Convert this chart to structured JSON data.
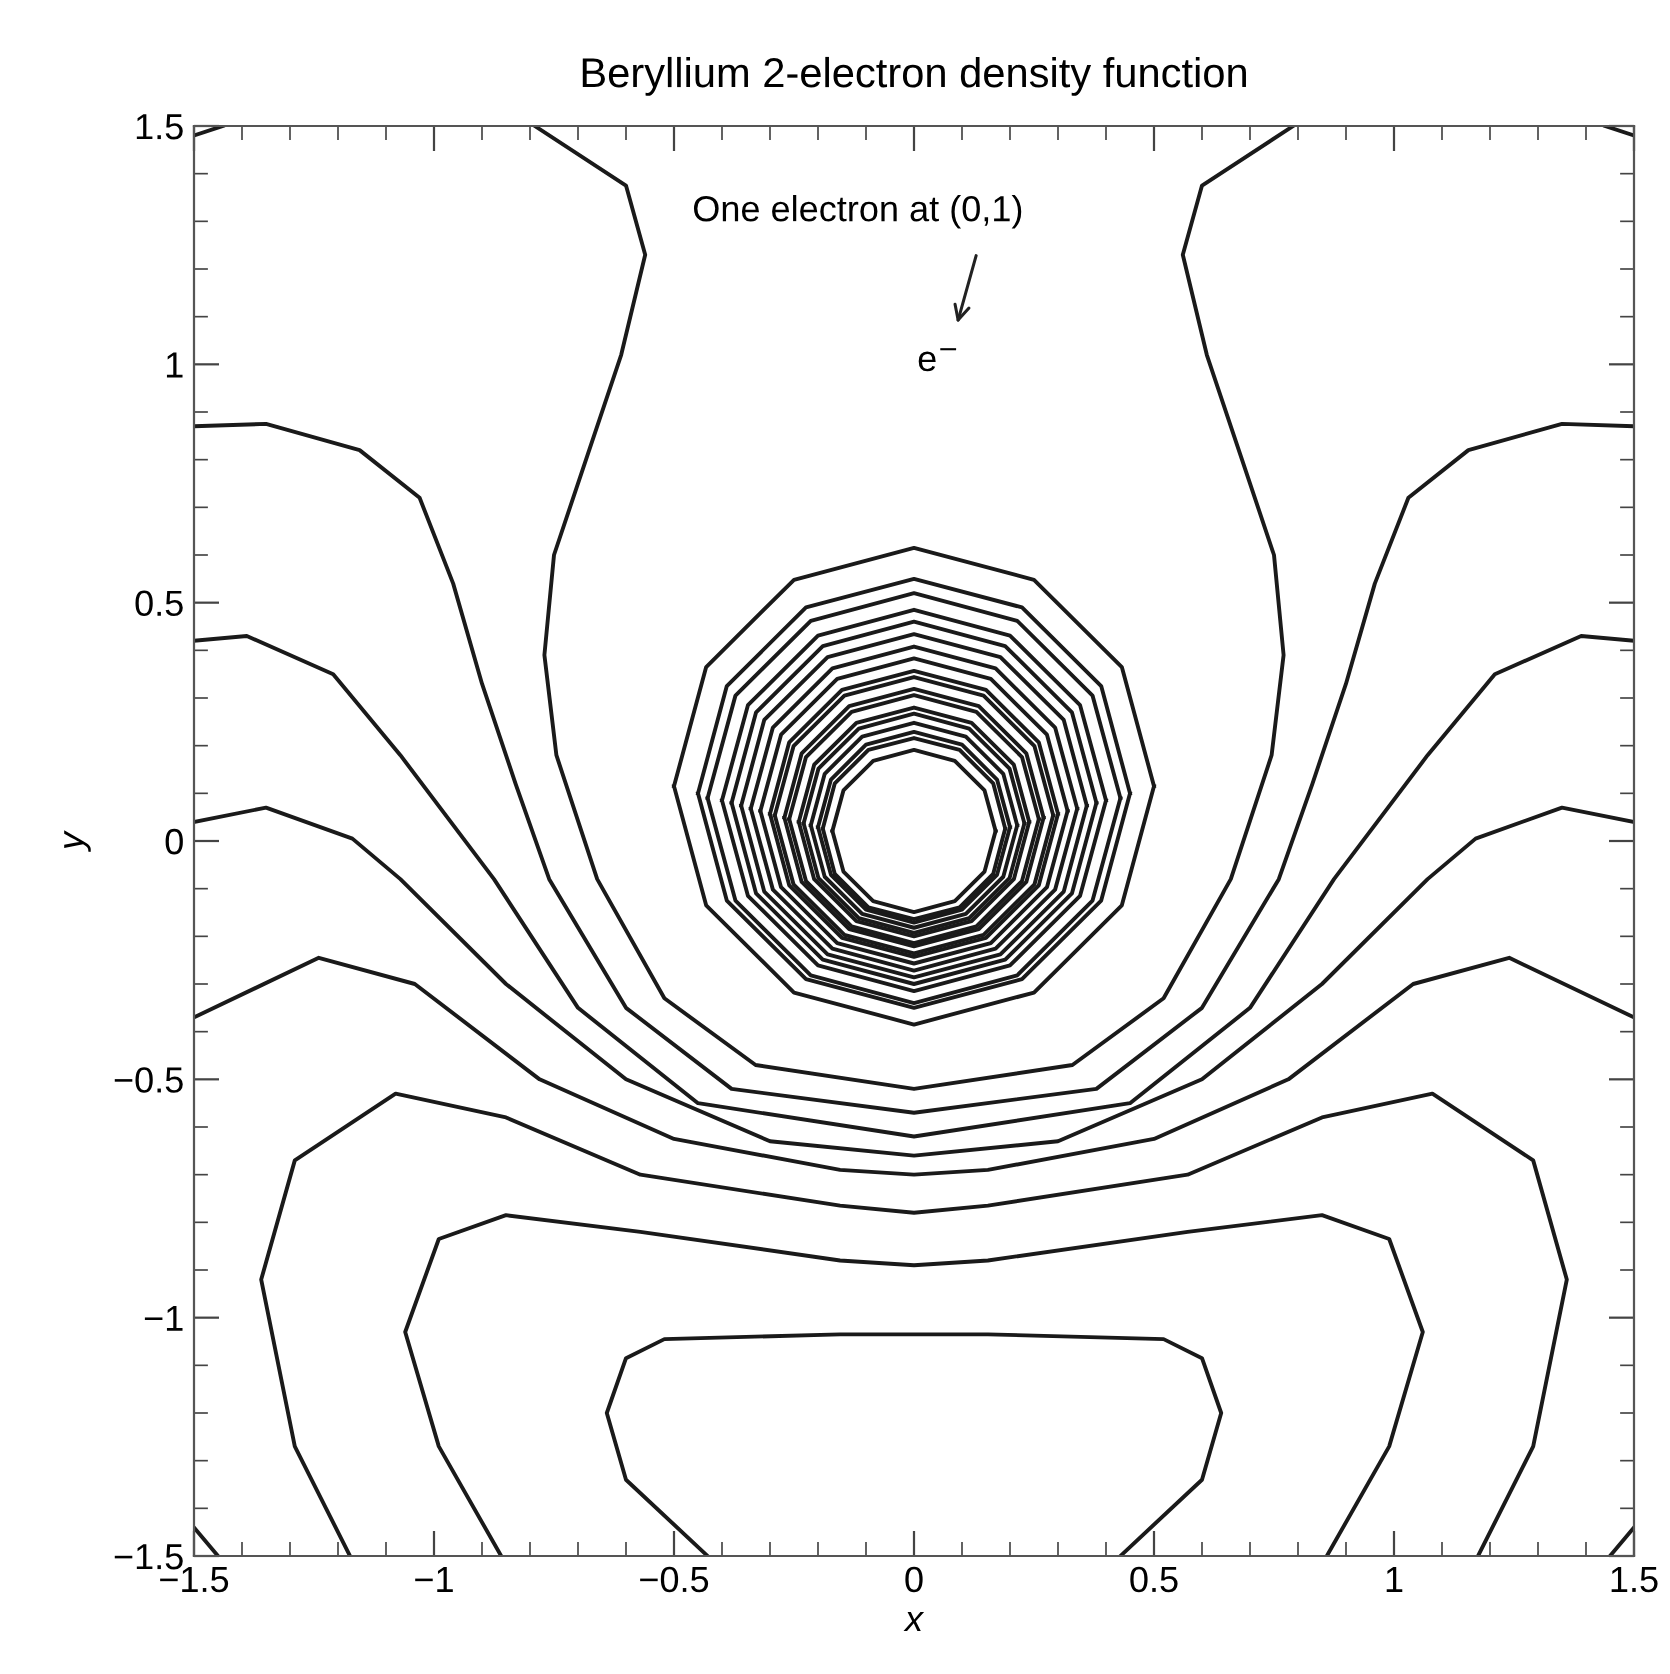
{
  "chart_data": {
    "type": "line",
    "title": "Beryllium 2-electron density function",
    "xlabel": "x",
    "ylabel": "y",
    "line_style": "solid",
    "xlim": [
      -1.5,
      1.5
    ],
    "ylim": [
      -1.5,
      1.5
    ],
    "xticks": [
      {
        "value": -1.5,
        "label": "−1.5"
      },
      {
        "value": -1,
        "label": "−1"
      },
      {
        "value": -0.5,
        "label": "−0.5"
      },
      0,
      0.5,
      1,
      1.5
    ],
    "yticks": [
      {
        "value": -1.5,
        "label": "−1.5"
      },
      {
        "value": -1,
        "label": "−1"
      },
      {
        "value": -0.5,
        "label": "−0.5"
      },
      0,
      0.5,
      1,
      1.5
    ],
    "annotations": [
      "One electron at (0,1)",
      "e$^{−}$"
    ],
    "series": [
      {
        "color": "#1a1a1a",
        "x": [
          -0.79,
          -0.6,
          -0.56,
          -0.61,
          -0.68,
          -0.75,
          -0.77,
          -0.745,
          -0.66,
          -0.52,
          -0.33,
          0,
          0.33,
          0.52,
          0.66,
          0.745,
          0.77,
          0.75,
          0.68,
          0.61,
          0.56,
          0.6,
          0.79
        ],
        "values": [
          1.5,
          1.375,
          1.23,
          1.02,
          0.81,
          0.6,
          0.39,
          0.18,
          -0.08,
          -0.33,
          -0.47,
          -0.52,
          -0.47,
          -0.33,
          -0.08,
          0.18,
          0.39,
          0.6,
          0.81,
          1.02,
          1.23,
          1.375,
          1.5
        ]
      },
      {
        "color": "#1a1a1a",
        "x": [
          -1.5,
          -1.35,
          -1.155,
          -1.03,
          -0.96,
          -0.9,
          -0.83,
          -0.76,
          -0.6,
          -0.38,
          0,
          0.38,
          0.6,
          0.76,
          0.83,
          0.9,
          0.96,
          1.03,
          1.155,
          1.35,
          1.5
        ],
        "values": [
          0.87,
          0.875,
          0.82,
          0.72,
          0.54,
          0.33,
          0.12,
          -0.08,
          -0.35,
          -0.52,
          -0.57,
          -0.52,
          -0.35,
          -0.08,
          0.12,
          0.33,
          0.54,
          0.72,
          0.82,
          0.875,
          0.87
        ]
      },
      {
        "color": "#1a1a1a",
        "x": [
          -1.5,
          -1.39,
          -1.21,
          -1.07,
          -0.875,
          -0.7,
          -0.45,
          0,
          0.45,
          0.7,
          0.875,
          1.07,
          1.21,
          1.39,
          1.5
        ],
        "values": [
          0.42,
          0.43,
          0.35,
          0.18,
          -0.08,
          -0.35,
          -0.55,
          -0.62,
          -0.55,
          -0.35,
          -0.08,
          0.18,
          0.35,
          0.43,
          0.42
        ]
      },
      {
        "color": "#1a1a1a",
        "x": [
          -1.5,
          -1.35,
          -1.17,
          -1.07,
          -0.85,
          -0.6,
          -0.3,
          0,
          0.3,
          0.6,
          0.85,
          1.07,
          1.17,
          1.35,
          1.5
        ],
        "values": [
          0.04,
          0.07,
          0.005,
          -0.08,
          -0.3,
          -0.5,
          -0.63,
          -0.66,
          -0.63,
          -0.5,
          -0.3,
          -0.08,
          0.005,
          0.07,
          0.04
        ]
      },
      {
        "color": "#1a1a1a",
        "x": [
          -1.5,
          -1.24,
          -1.04,
          -0.78,
          -0.5,
          -0.154,
          0,
          0.154,
          0.5,
          0.78,
          1.04,
          1.24,
          1.5
        ],
        "values": [
          -0.37,
          -0.245,
          -0.3,
          -0.5,
          -0.625,
          -0.69,
          -0.7,
          -0.69,
          -0.625,
          -0.5,
          -0.3,
          -0.245,
          -0.37
        ]
      },
      {
        "color": "#1a1a1a",
        "x": [
          -1.175,
          -1.29,
          -1.36,
          -1.29,
          -1.08,
          -0.85,
          -0.57,
          -0.154,
          0,
          0.154,
          0.57,
          0.85,
          1.08,
          1.29,
          1.36,
          1.29,
          1.175
        ],
        "values": [
          -1.5,
          -1.27,
          -0.92,
          -0.67,
          -0.53,
          -0.58,
          -0.7,
          -0.765,
          -0.78,
          -0.765,
          -0.7,
          -0.58,
          -0.53,
          -0.67,
          -0.92,
          -1.27,
          -1.5
        ]
      },
      {
        "color": "#1a1a1a",
        "x": [
          -0.86,
          -0.99,
          -1.06,
          -0.99,
          -0.85,
          -0.57,
          -0.154,
          0,
          0.154,
          0.57,
          0.85,
          0.99,
          1.06,
          0.99,
          0.86
        ],
        "values": [
          -1.5,
          -1.27,
          -1.03,
          -0.835,
          -0.785,
          -0.82,
          -0.88,
          -0.89,
          -0.88,
          -0.82,
          -0.785,
          -0.835,
          -1.03,
          -1.27,
          -1.5
        ]
      },
      {
        "color": "#1a1a1a",
        "x": [
          -0.43,
          -0.6,
          -0.64,
          -0.6,
          -0.52,
          -0.154,
          0,
          0.154,
          0.52,
          0.6,
          0.64,
          0.6,
          0.43
        ],
        "values": [
          -1.5,
          -1.34,
          -1.2,
          -1.085,
          -1.045,
          -1.035,
          -1.035,
          -1.035,
          -1.045,
          -1.085,
          -1.2,
          -1.34,
          -1.5
        ]
      },
      {
        "color": "#1a1a1a",
        "x": [
          -1.5,
          -1.45
        ],
        "values": [
          -1.44,
          -1.5
        ]
      },
      {
        "color": "#1a1a1a",
        "x": [
          1.45,
          1.5
        ],
        "values": [
          -1.5,
          -1.44
        ]
      },
      {
        "color": "#1a1a1a",
        "x": [
          -1.5,
          -1.44
        ],
        "values": [
          1.48,
          1.5
        ]
      },
      {
        "color": "#1a1a1a",
        "x": [
          1.44,
          1.5
        ],
        "values": [
          1.5,
          1.48
        ]
      },
      {
        "color": "#1a1a1a",
        "x": [
          0.5,
          0.433,
          0.25,
          0,
          -0.25,
          -0.433,
          -0.5
        ],
        "values": [
          0.115,
          0.365,
          0.548,
          0.615,
          0.548,
          0.365,
          0.115
        ]
      },
      {
        "color": "#1a1a1a",
        "x": [
          -0.5,
          -0.433,
          -0.25,
          0,
          0.25,
          0.433,
          0.5
        ],
        "values": [
          0.115,
          -0.135,
          -0.318,
          -0.385,
          -0.318,
          -0.135,
          0.115
        ]
      },
      {
        "color": "#1a1a1a",
        "x": [
          0.45,
          0.39,
          0.225,
          0,
          -0.225,
          -0.39,
          -0.45
        ],
        "values": [
          0.1,
          0.325,
          0.49,
          0.55,
          0.49,
          0.325,
          0.1
        ]
      },
      {
        "color": "#1a1a1a",
        "x": [
          -0.45,
          -0.39,
          -0.225,
          0,
          0.225,
          0.39,
          0.45
        ],
        "values": [
          0.1,
          -0.125,
          -0.29,
          -0.35,
          -0.29,
          -0.125,
          0.1
        ]
      },
      {
        "color": "#1a1a1a",
        "x": [
          0.43,
          0.372,
          0.215,
          0,
          -0.215,
          -0.372,
          -0.43
        ],
        "values": [
          0.09,
          0.305,
          0.462,
          0.52,
          0.462,
          0.305,
          0.09
        ]
      },
      {
        "color": "#1a1a1a",
        "x": [
          -0.43,
          -0.372,
          -0.215,
          0,
          0.215,
          0.372,
          0.43
        ],
        "values": [
          0.09,
          -0.125,
          -0.282,
          -0.34,
          -0.282,
          -0.125,
          0.09
        ]
      },
      {
        "color": "#1a1a1a",
        "x": [
          0.4,
          0.346,
          0.2,
          0,
          -0.2,
          -0.346,
          -0.4
        ],
        "values": [
          0.085,
          0.285,
          0.431,
          0.485,
          0.431,
          0.285,
          0.085
        ]
      },
      {
        "color": "#1a1a1a",
        "x": [
          -0.4,
          -0.346,
          -0.2,
          0,
          0.2,
          0.346,
          0.4
        ],
        "values": [
          0.085,
          -0.115,
          -0.261,
          -0.315,
          -0.261,
          -0.115,
          0.085
        ]
      },
      {
        "color": "#1a1a1a",
        "x": [
          0.38,
          0.329,
          0.19,
          0,
          -0.19,
          -0.329,
          -0.38
        ],
        "values": [
          0.08,
          0.27,
          0.409,
          0.46,
          0.409,
          0.27,
          0.08
        ]
      },
      {
        "color": "#1a1a1a",
        "x": [
          -0.38,
          -0.329,
          -0.19,
          0,
          0.19,
          0.329,
          0.38
        ],
        "values": [
          0.08,
          -0.11,
          -0.249,
          -0.3,
          -0.249,
          -0.11,
          0.08
        ]
      },
      {
        "color": "#1a1a1a",
        "x": [
          0.36,
          0.312,
          0.18,
          0,
          -0.18,
          -0.312,
          -0.36
        ],
        "values": [
          0.074,
          0.254,
          0.386,
          0.434,
          0.386,
          0.254,
          0.074
        ]
      },
      {
        "color": "#1a1a1a",
        "x": [
          -0.36,
          -0.312,
          -0.18,
          0,
          0.18,
          0.312,
          0.36
        ],
        "values": [
          0.074,
          -0.106,
          -0.238,
          -0.286,
          -0.238,
          -0.106,
          0.074
        ]
      },
      {
        "color": "#1a1a1a",
        "x": [
          0.34,
          0.294,
          0.17,
          0,
          -0.17,
          -0.294,
          -0.34
        ],
        "values": [
          0.068,
          0.238,
          0.362,
          0.408,
          0.362,
          0.238,
          0.068
        ]
      },
      {
        "color": "#1a1a1a",
        "x": [
          -0.34,
          -0.294,
          -0.17,
          0,
          0.17,
          0.294,
          0.34
        ],
        "values": [
          0.068,
          -0.102,
          -0.226,
          -0.272,
          -0.226,
          -0.102,
          0.068
        ]
      },
      {
        "color": "#1a1a1a",
        "x": [
          0.32,
          0.277,
          0.16,
          0,
          -0.16,
          -0.277,
          -0.32
        ],
        "values": [
          0.063,
          0.223,
          0.34,
          0.383,
          0.34,
          0.223,
          0.063
        ]
      },
      {
        "color": "#1a1a1a",
        "x": [
          -0.32,
          -0.277,
          -0.16,
          0,
          0.16,
          0.277,
          0.32
        ],
        "values": [
          0.063,
          -0.097,
          -0.214,
          -0.257,
          -0.214,
          -0.097,
          0.063
        ]
      },
      {
        "color": "#1a1a1a",
        "x": [
          0.3,
          0.26,
          0.15,
          0,
          -0.15,
          -0.26,
          -0.3
        ],
        "values": [
          0.057,
          0.207,
          0.317,
          0.357,
          0.317,
          0.207,
          0.057
        ]
      },
      {
        "color": "#1a1a1a",
        "x": [
          -0.3,
          -0.26,
          -0.15,
          0,
          0.15,
          0.26,
          0.3
        ],
        "values": [
          0.057,
          -0.093,
          -0.203,
          -0.243,
          -0.203,
          -0.093,
          0.057
        ]
      },
      {
        "color": "#1a1a1a",
        "x": [
          0.29,
          0.251,
          0.145,
          0,
          -0.145,
          -0.251,
          -0.29
        ],
        "values": [
          0.054,
          0.199,
          0.305,
          0.344,
          0.305,
          0.199,
          0.054
        ]
      },
      {
        "color": "#1a1a1a",
        "x": [
          -0.29,
          -0.251,
          -0.145,
          0,
          0.145,
          0.251,
          0.29
        ],
        "values": [
          0.054,
          -0.091,
          -0.197,
          -0.236,
          -0.197,
          -0.091,
          0.054
        ]
      },
      {
        "color": "#1a1a1a",
        "x": [
          0.27,
          0.234,
          0.135,
          0,
          -0.135,
          -0.234,
          -0.27
        ],
        "values": [
          0.049,
          0.184,
          0.283,
          0.319,
          0.283,
          0.184,
          0.049
        ]
      },
      {
        "color": "#1a1a1a",
        "x": [
          -0.27,
          -0.234,
          -0.135,
          0,
          0.135,
          0.234,
          0.27
        ],
        "values": [
          0.049,
          -0.086,
          -0.185,
          -0.221,
          -0.185,
          -0.086,
          0.049
        ]
      },
      {
        "color": "#1a1a1a",
        "x": [
          0.26,
          0.225,
          0.13,
          0,
          -0.13,
          -0.225,
          -0.26
        ],
        "values": [
          0.046,
          0.176,
          0.271,
          0.306,
          0.271,
          0.176,
          0.046
        ]
      },
      {
        "color": "#1a1a1a",
        "x": [
          -0.26,
          -0.225,
          -0.13,
          0,
          0.13,
          0.225,
          0.26
        ],
        "values": [
          0.046,
          -0.084,
          -0.179,
          -0.214,
          -0.179,
          -0.084,
          0.046
        ]
      },
      {
        "color": "#1a1a1a",
        "x": [
          0.24,
          0.208,
          0.12,
          0,
          -0.12,
          -0.208,
          -0.24
        ],
        "values": [
          0.04,
          0.16,
          0.248,
          0.28,
          0.248,
          0.16,
          0.04
        ]
      },
      {
        "color": "#1a1a1a",
        "x": [
          -0.24,
          -0.208,
          -0.12,
          0,
          0.12,
          0.208,
          0.24
        ],
        "values": [
          0.04,
          -0.08,
          -0.168,
          -0.2,
          -0.168,
          -0.08,
          0.04
        ]
      },
      {
        "color": "#1a1a1a",
        "x": [
          0.23,
          0.199,
          0.115,
          0,
          -0.115,
          -0.199,
          -0.23
        ],
        "values": [
          0.037,
          0.152,
          0.236,
          0.267,
          0.236,
          0.152,
          0.037
        ]
      },
      {
        "color": "#1a1a1a",
        "x": [
          -0.23,
          -0.199,
          -0.115,
          0,
          0.115,
          0.199,
          0.23
        ],
        "values": [
          0.037,
          -0.078,
          -0.162,
          -0.193,
          -0.162,
          -0.078,
          0.037
        ]
      },
      {
        "color": "#1a1a1a",
        "x": [
          0.215,
          0.186,
          0.108,
          0,
          -0.108,
          -0.186,
          -0.215
        ],
        "values": [
          0.033,
          0.141,
          0.219,
          0.248,
          0.219,
          0.141,
          0.033
        ]
      },
      {
        "color": "#1a1a1a",
        "x": [
          -0.215,
          -0.186,
          -0.108,
          0,
          0.108,
          0.186,
          0.215
        ],
        "values": [
          0.033,
          -0.075,
          -0.153,
          -0.182,
          -0.153,
          -0.075,
          0.033
        ]
      },
      {
        "color": "#1a1a1a",
        "x": [
          0.2,
          0.173,
          0.1,
          0,
          -0.1,
          -0.173,
          -0.2
        ],
        "values": [
          0.029,
          0.129,
          0.202,
          0.229,
          0.202,
          0.129,
          0.029
        ]
      },
      {
        "color": "#1a1a1a",
        "x": [
          -0.2,
          -0.173,
          -0.1,
          0,
          0.1,
          0.173,
          0.2
        ],
        "values": [
          0.029,
          -0.071,
          -0.144,
          -0.171,
          -0.144,
          -0.071,
          0.029
        ]
      },
      {
        "color": "#1a1a1a",
        "x": [
          0.19,
          0.165,
          0.095,
          0,
          -0.095,
          -0.165,
          -0.19
        ],
        "values": [
          0.026,
          0.121,
          0.191,
          0.216,
          0.191,
          0.121,
          0.026
        ]
      },
      {
        "color": "#1a1a1a",
        "x": [
          -0.19,
          -0.165,
          -0.095,
          0,
          0.095,
          0.165,
          0.19
        ],
        "values": [
          0.026,
          -0.069,
          -0.139,
          -0.164,
          -0.139,
          -0.069,
          0.026
        ]
      },
      {
        "color": "#1a1a1a",
        "x": [
          0.17,
          0.147,
          0.085,
          0,
          -0.085,
          -0.147,
          -0.17
        ],
        "values": [
          0.021,
          0.106,
          0.168,
          0.191,
          0.168,
          0.106,
          0.021
        ]
      },
      {
        "color": "#1a1a1a",
        "x": [
          -0.17,
          -0.147,
          -0.085,
          0,
          0.085,
          0.147,
          0.17
        ],
        "values": [
          0.021,
          -0.064,
          -0.126,
          -0.149,
          -0.126,
          -0.064,
          0.021
        ]
      }
    ]
  }
}
